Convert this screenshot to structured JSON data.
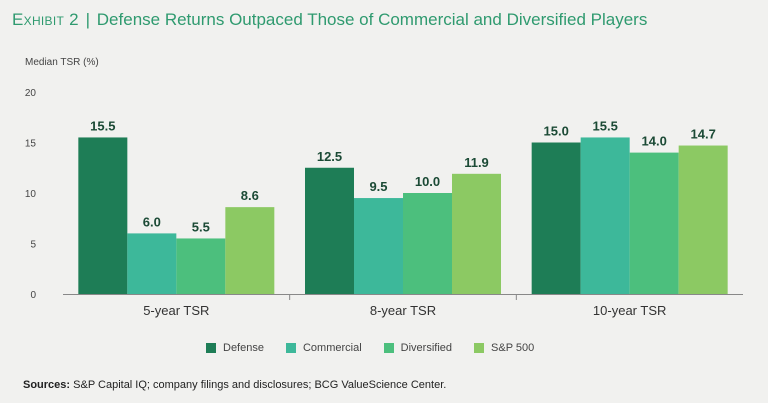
{
  "header": {
    "exhibit_label": "Exhibit 2",
    "separator": "|",
    "title": "Defense Returns Outpaced Those of Commercial and Diversified Players"
  },
  "chart_data": {
    "type": "bar",
    "title": "Defense Returns Outpaced Those of Commercial and Diversified Players",
    "ylabel": "Median TSR (%)",
    "xlabel": "",
    "ylim": [
      0,
      20
    ],
    "yticks": [
      0,
      5,
      10,
      15,
      20
    ],
    "categories": [
      "5-year TSR",
      "8-year TSR",
      "10-year TSR"
    ],
    "series": [
      {
        "name": "Defense",
        "color": "#1e7d56",
        "values": [
          15.5,
          12.5,
          15.0
        ]
      },
      {
        "name": "Commercial",
        "color": "#3db89a",
        "values": [
          6.0,
          9.5,
          15.5
        ]
      },
      {
        "name": "Diversified",
        "color": "#4cbf7d",
        "values": [
          5.5,
          10.0,
          14.0
        ]
      },
      {
        "name": "S&P 500",
        "color": "#8cc963",
        "values": [
          8.6,
          11.9,
          14.7
        ]
      }
    ],
    "value_labels": [
      [
        "15.5",
        "12.5",
        "15.0"
      ],
      [
        "6.0",
        "9.5",
        "15.5"
      ],
      [
        "5.5",
        "10.0",
        "14.0"
      ],
      [
        "8.6",
        "11.9",
        "14.7"
      ]
    ],
    "grid": false,
    "legend_position": "bottom",
    "label_color": "#1b4a35"
  },
  "footer": {
    "sources_label": "Sources:",
    "sources_text": "S&P Capital IQ; company filings and disclosures; BCG ValueScience Center."
  }
}
